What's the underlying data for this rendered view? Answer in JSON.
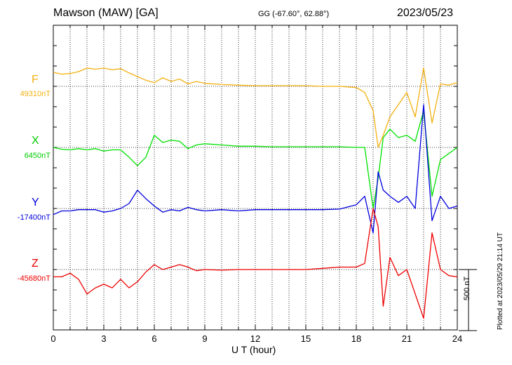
{
  "header": {
    "station": "Mawson (MAW)  [GA]",
    "coords": "GG (-67.60°,  62.88°)",
    "date": "2023/05/23"
  },
  "footer": {
    "scale_label": "500 nT",
    "plotted_note": "Plotted at 2023/05/29 21:14 UT"
  },
  "colors": {
    "F": "#f4b010",
    "X": "#00e000",
    "Y": "#0000dd",
    "Z": "#ee0000"
  },
  "chart_data": {
    "type": "line",
    "xlabel": "U T (hour)",
    "xlim": [
      0,
      24
    ],
    "xticks": [
      "0",
      "3",
      "6",
      "9",
      "12",
      "15",
      "18",
      "21",
      "24"
    ],
    "grid": "dotted vertical every 1 h, dotted horizontal baseline per trace",
    "scale_bar_nT": 500,
    "y_unit": "nT",
    "series": [
      {
        "name": "F",
        "baseline_label": "49310nT",
        "x": [
          0,
          0.5,
          1,
          1.5,
          2,
          2.5,
          3,
          3.5,
          4,
          4.5,
          5,
          5.5,
          6,
          6.5,
          7,
          7.5,
          8,
          8.5,
          9,
          10,
          11,
          12,
          13,
          14,
          15,
          16,
          17,
          18,
          18.5,
          19,
          19.3,
          19.6,
          20,
          20.5,
          21,
          21.5,
          22,
          22.5,
          23,
          23.5,
          24
        ],
        "y": [
          115,
          100,
          105,
          120,
          150,
          140,
          150,
          135,
          145,
          110,
          80,
          50,
          30,
          70,
          40,
          60,
          20,
          40,
          25,
          15,
          10,
          5,
          5,
          5,
          5,
          0,
          0,
          -10,
          -50,
          -200,
          -500,
          -400,
          -250,
          -150,
          -50,
          -250,
          150,
          -300,
          20,
          10,
          30
        ]
      },
      {
        "name": "X",
        "baseline_label": "6450nT",
        "x": [
          0,
          0.5,
          1,
          1.5,
          2,
          2.5,
          3,
          3.5,
          4,
          4.5,
          5,
          5.5,
          6,
          6.5,
          7,
          7.5,
          8,
          8.5,
          9,
          10,
          11,
          12,
          13,
          14,
          15,
          16,
          17,
          18,
          18.5,
          19,
          19.3,
          19.6,
          20,
          20.5,
          21,
          21.5,
          22,
          22.5,
          23,
          23.5,
          24
        ],
        "y": [
          0,
          -15,
          -20,
          -10,
          -20,
          -10,
          -30,
          -20,
          -20,
          -80,
          -150,
          -80,
          100,
          40,
          60,
          50,
          -10,
          20,
          30,
          20,
          10,
          10,
          5,
          5,
          5,
          5,
          5,
          0,
          0,
          -500,
          -250,
          80,
          150,
          80,
          100,
          50,
          300,
          -400,
          -100,
          -50,
          0
        ]
      },
      {
        "name": "Y",
        "baseline_label": "-17400nT",
        "x": [
          0,
          0.5,
          1,
          1.5,
          2,
          2.5,
          3,
          3.5,
          4,
          4.5,
          5,
          5.5,
          6,
          6.5,
          7,
          7.5,
          8,
          8.5,
          9,
          10,
          11,
          12,
          13,
          14,
          15,
          16,
          17,
          18,
          18.5,
          19,
          19.3,
          19.6,
          20,
          20.5,
          21,
          21.5,
          22,
          22.5,
          23,
          23.5,
          24
        ],
        "y": [
          -50,
          -20,
          -20,
          -10,
          -10,
          -10,
          -30,
          -20,
          0,
          40,
          150,
          80,
          20,
          -30,
          -10,
          -20,
          10,
          -10,
          -20,
          -10,
          -20,
          -10,
          -10,
          -10,
          -10,
          -10,
          -5,
          30,
          100,
          -200,
          300,
          150,
          100,
          50,
          100,
          0,
          850,
          -100,
          100,
          0,
          20
        ]
      },
      {
        "name": "Z",
        "baseline_label": "-45680nT",
        "x": [
          0,
          0.5,
          1,
          1.5,
          2,
          2.5,
          3,
          3.5,
          4,
          4.5,
          5,
          5.5,
          6,
          6.5,
          7,
          7.5,
          8,
          8.5,
          9,
          10,
          11,
          12,
          13,
          14,
          15,
          16,
          17,
          18,
          18.5,
          19,
          19.3,
          19.6,
          20,
          20.5,
          21,
          21.5,
          22,
          22.5,
          23,
          23.5,
          24
        ],
        "y": [
          -60,
          -60,
          -30,
          -80,
          -200,
          -150,
          -120,
          -150,
          -80,
          -150,
          -100,
          -20,
          40,
          0,
          20,
          40,
          20,
          -10,
          0,
          -5,
          0,
          0,
          0,
          0,
          0,
          10,
          20,
          20,
          50,
          500,
          350,
          -300,
          100,
          -50,
          0,
          -200,
          -400,
          300,
          0,
          -50,
          -60
        ]
      }
    ]
  }
}
